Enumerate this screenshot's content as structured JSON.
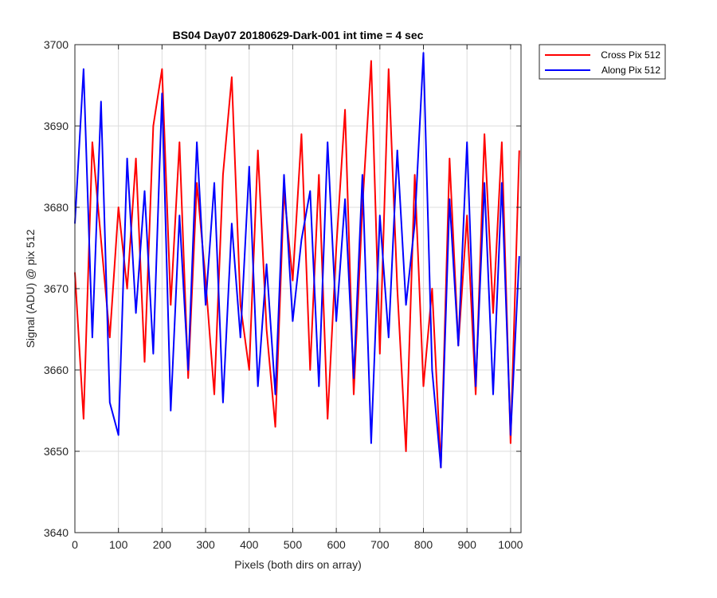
{
  "chart_data": {
    "type": "line",
    "title": "BS04 Day07 20180629-Dark-001 int time = 4 sec",
    "xlabel": "Pixels (both dirs on array)",
    "ylabel": "Signal (ADU) @ pix 512",
    "xlim": [
      0,
      1024
    ],
    "ylim": [
      3640,
      3700
    ],
    "xticks": [
      0,
      100,
      200,
      300,
      400,
      500,
      600,
      700,
      800,
      900,
      1000
    ],
    "yticks": [
      3640,
      3650,
      3660,
      3670,
      3680,
      3690,
      3700
    ],
    "grid": true,
    "legend_position": "outside-top-right",
    "series": [
      {
        "name": "Cross Pix 512",
        "color": "#ff0000",
        "x": [
          0,
          20,
          40,
          60,
          80,
          100,
          120,
          140,
          160,
          180,
          200,
          220,
          240,
          260,
          280,
          300,
          320,
          340,
          360,
          380,
          400,
          420,
          440,
          460,
          480,
          500,
          520,
          540,
          560,
          580,
          600,
          620,
          640,
          660,
          680,
          700,
          720,
          740,
          760,
          780,
          800,
          820,
          840,
          860,
          880,
          900,
          920,
          940,
          960,
          980,
          1000,
          1020
        ],
        "values": [
          3672,
          3654,
          3688,
          3676,
          3664,
          3680,
          3670,
          3686,
          3661,
          3690,
          3697,
          3668,
          3688,
          3659,
          3683,
          3671,
          3657,
          3684,
          3696,
          3668,
          3660,
          3687,
          3665,
          3653,
          3682,
          3671,
          3689,
          3660,
          3684,
          3654,
          3675,
          3692,
          3657,
          3680,
          3698,
          3662,
          3697,
          3670,
          3650,
          3684,
          3658,
          3670,
          3648,
          3686,
          3663,
          3679,
          3657,
          3689,
          3667,
          3688,
          3651,
          3687
        ]
      },
      {
        "name": "Along Pix 512",
        "color": "#0000ff",
        "x": [
          0,
          20,
          40,
          60,
          80,
          100,
          120,
          140,
          160,
          180,
          200,
          220,
          240,
          260,
          280,
          300,
          320,
          340,
          360,
          380,
          400,
          420,
          440,
          460,
          480,
          500,
          520,
          540,
          560,
          580,
          600,
          620,
          640,
          660,
          680,
          700,
          720,
          740,
          760,
          780,
          800,
          820,
          840,
          860,
          880,
          900,
          920,
          940,
          960,
          980,
          1000,
          1020
        ],
        "values": [
          3678,
          3697,
          3664,
          3693,
          3656,
          3652,
          3686,
          3667,
          3682,
          3662,
          3694,
          3655,
          3679,
          3660,
          3688,
          3668,
          3683,
          3656,
          3678,
          3664,
          3685,
          3658,
          3673,
          3657,
          3684,
          3666,
          3676,
          3682,
          3658,
          3688,
          3666,
          3681,
          3659,
          3684,
          3651,
          3679,
          3664,
          3687,
          3668,
          3678,
          3699,
          3660,
          3648,
          3681,
          3663,
          3688,
          3658,
          3683,
          3657,
          3683,
          3652,
          3674
        ]
      }
    ]
  }
}
